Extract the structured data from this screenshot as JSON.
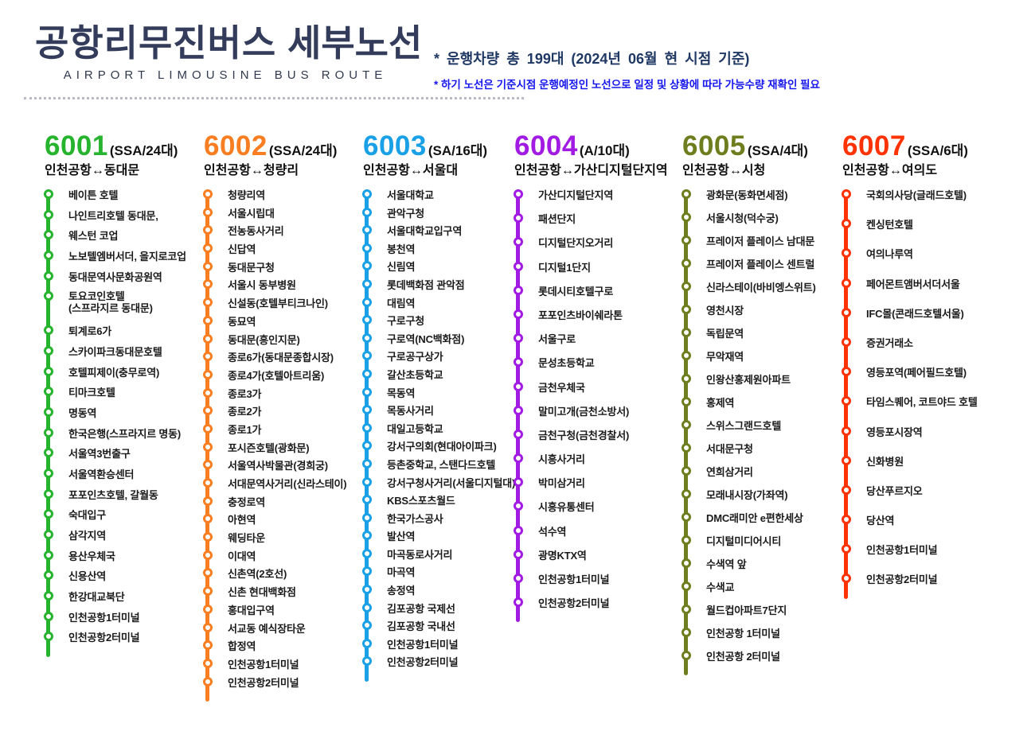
{
  "header": {
    "title_main": "공항리무진버스",
    "title_accent": "세부노선",
    "subtitle": "AIRPORT LIMOUSINE BUS ROUTE",
    "notes": {
      "fleet_total": "* 운행차량 총 199대 (2024년 06월 현 시점 기준)",
      "caveat": "* 하기 노선은 기준시점 운행예정인 노선으로 일정 및 상황에 따라 가능수량 재확인 필요"
    }
  },
  "routes": [
    {
      "number": "6001",
      "fleet": "(SSA/24대)",
      "endpoints": "인천공항↔동대문",
      "color": "#26b32d",
      "stops": [
        "베이튼 호텔",
        "나인트리호텔 동대문,",
        "웨스턴 코업",
        "노보텔엠버서더, 을지로코업",
        "동대문역사문화공원역",
        "토요코인호텔\n(스프라지르 동대문)",
        "퇴계로6가",
        "스카이파크동대문호텔",
        "호텔피제이(충무로역)",
        "티마크호텔",
        "명동역",
        "한국은행(스프라지르 명동)",
        "서울역3번출구",
        "서울역환승센터",
        "포포인츠호텔, 갈월동",
        "숙대입구",
        "삼각지역",
        "용산우체국",
        "신용산역",
        "한강대교북단",
        "인천공항1터미널",
        "인천공항2터미널"
      ]
    },
    {
      "number": "6002",
      "fleet": "(SSA/24대)",
      "endpoints": "인천공항↔청량리",
      "color": "#f87e21",
      "stops": [
        "청량리역",
        "서울시립대",
        "전농동사거리",
        "신답역",
        "동대문구청",
        "서울시 동부병원",
        "신설동(호텔부티크나인)",
        "동묘역",
        "동대문(흥인지문)",
        "종로6가(동대문종합시장)",
        "종로4가(호텔아트리움)",
        "종로3가",
        "종로2가",
        "종로1가",
        "포시즌호텔(광화문)",
        "서울역사박물관(경희궁)",
        "서대문역사거리(신라스테이)",
        "충정로역",
        "아현역",
        "웨딩타운",
        "이대역",
        "신촌역(2호선)",
        "신촌 현대백화점",
        "홍대입구역",
        "서교동 예식장타운",
        "합정역",
        "인천공항1터미널",
        "인천공항2터미널"
      ]
    },
    {
      "number": "6003",
      "fleet": "(SA/16대)",
      "endpoints": "인천공항↔서울대",
      "color": "#19a0e6",
      "stops": [
        "서울대학교",
        "관악구청",
        "서울대학교입구역",
        "봉천역",
        "신림역",
        "롯데백화점 관악점",
        "대림역",
        "구로구청",
        "구로역(NC백화점)",
        "구로공구상가",
        "갈산초등학교",
        "목동역",
        "목동사거리",
        "대일고등학교",
        "강서구의회(현대아이파크)",
        "등촌중학교, 스탠다드호텔",
        "강서구청사거리(서울디지털대)",
        "KBS스포츠월드",
        "한국가스공사",
        "발산역",
        "마곡동로사거리",
        "마곡역",
        "송정역",
        "김포공항 국제선",
        "김포공항 국내선",
        "인천공항1터미널",
        "인천공항2터미널"
      ]
    },
    {
      "number": "6004",
      "fleet": "(A/10대)",
      "endpoints": "인천공항↔가산디지털단지역",
      "color": "#a11be3",
      "stops": [
        "가산디지털단지역",
        "패션단지",
        "디지털단지오거리",
        "디지털1단지",
        "롯데시티호텔구로",
        "포포인츠바이쉐라톤",
        "서울구로",
        "문성초등학교",
        "금천우체국",
        "말미고개(금천소방서)",
        "금천구청(금천경찰서)",
        "시흥사거리",
        "박미삼거리",
        "시흥유통센터",
        "석수역",
        "광명KTX역",
        "인천공항1터미널",
        "인천공항2터미널"
      ]
    },
    {
      "number": "6005",
      "fleet": "(SSA/4대)",
      "endpoints": "인천공항↔시청",
      "color": "#6e7e1e",
      "stops": [
        "광화문(동화면세점)",
        "서울시청(덕수궁)",
        "프레이저 플레이스 남대문",
        "프레이저 플레이스 센트럴",
        "신라스테이(바비엥스위트)",
        "영천시장",
        "독립문역",
        "무악재역",
        "인왕산홍제원아파트",
        "홍제역",
        "스위스그랜드호텔",
        "서대문구청",
        "연희삼거리",
        "모래내시장(가좌역)",
        "DMC래미안 e편한세상",
        "디지털미디어시티",
        "수색역 앞",
        "수색교",
        "월드컵아파트7단지",
        "인천공항 1터미널",
        "인천공항 2터미널"
      ]
    },
    {
      "number": "6007",
      "fleet": "(SSA/6대)",
      "endpoints": "인천공항↔여의도",
      "color": "#fd3305",
      "stops": [
        "국회의사당(글래드호텔)",
        "켄싱턴호텔",
        "여의나루역",
        "페어몬트앰버서더서울",
        "IFC몰(콘래드호텔서울)",
        "증권거래소",
        "영등포역(페어필드호텔)",
        "타임스퀘어, 코트야드 호텔",
        "영등포시장역",
        "신화병원",
        "당산푸르지오",
        "당산역",
        "인천공항1터미널",
        "인천공항2터미널"
      ]
    }
  ]
}
